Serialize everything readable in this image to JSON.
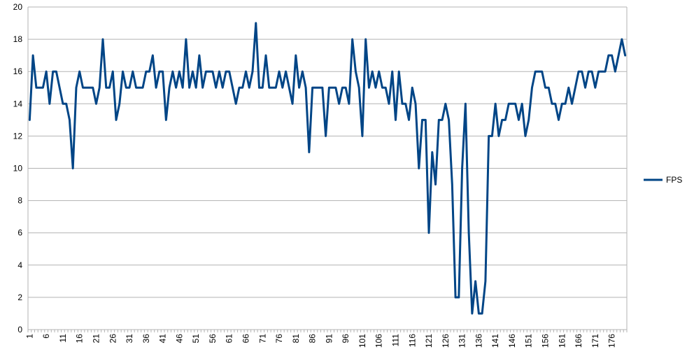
{
  "chart_data": {
    "type": "line",
    "title": "",
    "xlabel": "",
    "ylabel": "",
    "ylim": [
      0,
      20
    ],
    "y_ticks": [
      0,
      2,
      4,
      6,
      8,
      10,
      12,
      14,
      16,
      18,
      20
    ],
    "x_tick_labels": [
      "1",
      "6",
      "11",
      "16",
      "21",
      "26",
      "31",
      "36",
      "41",
      "46",
      "51",
      "56",
      "61",
      "66",
      "71",
      "76",
      "81",
      "86",
      "91",
      "96",
      "101",
      "106",
      "111",
      "116",
      "121",
      "126",
      "131",
      "136",
      "141",
      "146",
      "151",
      "156",
      "161",
      "166",
      "171",
      "176"
    ],
    "grid": "horizontal",
    "legend_position": "right",
    "series": [
      {
        "name": "FPS",
        "color": "#004586",
        "x_start": 1,
        "values": [
          13,
          17,
          15,
          15,
          15,
          16,
          14,
          16,
          16,
          15,
          14,
          14,
          13,
          10,
          15,
          16,
          15,
          15,
          15,
          15,
          14,
          15,
          18,
          15,
          15,
          16,
          13,
          14,
          16,
          15,
          15,
          16,
          15,
          15,
          15,
          16,
          16,
          17,
          15,
          16,
          16,
          13,
          15,
          16,
          15,
          16,
          15,
          18,
          15,
          16,
          15,
          17,
          15,
          16,
          16,
          16,
          15,
          16,
          15,
          16,
          16,
          15,
          14,
          15,
          15,
          16,
          15,
          16,
          19,
          15,
          15,
          17,
          15,
          15,
          15,
          16,
          15,
          16,
          15,
          14,
          17,
          15,
          16,
          15,
          11,
          15,
          15,
          15,
          15,
          12,
          15,
          15,
          15,
          14,
          15,
          15,
          14,
          18,
          16,
          15,
          12,
          18,
          15,
          16,
          15,
          16,
          15,
          15,
          14,
          16,
          13,
          16,
          14,
          14,
          13,
          15,
          14,
          10,
          13,
          13,
          6,
          11,
          9,
          13,
          13,
          14,
          13,
          9,
          2,
          2,
          10,
          14,
          6,
          1,
          3,
          1,
          1,
          3,
          12,
          12,
          14,
          12,
          13,
          13,
          14,
          14,
          14,
          13,
          14,
          12,
          13,
          15,
          16,
          16,
          16,
          15,
          15,
          14,
          14,
          13,
          14,
          14,
          15,
          14,
          15,
          16,
          16,
          15,
          16,
          16,
          15,
          16,
          16,
          16,
          17,
          17,
          16,
          17,
          18,
          17
        ]
      }
    ]
  }
}
